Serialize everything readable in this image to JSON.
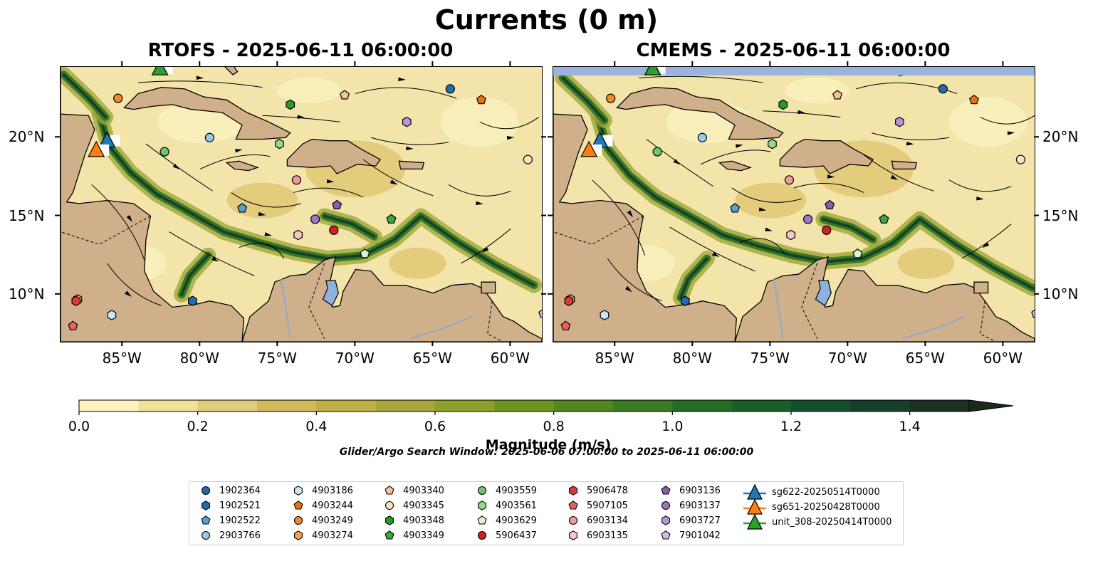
{
  "title": "Currents (0 m)",
  "panels": [
    {
      "title": "RTOFS - 2025-06-11 06:00:00"
    },
    {
      "title": "CMEMS - 2025-06-11 06:00:00"
    }
  ],
  "axes": {
    "lon_ticks": [
      "85°W",
      "80°W",
      "75°W",
      "70°W",
      "65°W",
      "60°W"
    ],
    "lat_ticks": [
      "20°N",
      "15°N",
      "10°N"
    ],
    "lon_range": [
      -89.0,
      -58.0
    ],
    "lat_range": [
      7.0,
      24.5
    ]
  },
  "colorbar": {
    "label": "Magnitude (m/s)",
    "ticks": [
      "0.0",
      "0.2",
      "0.4",
      "0.6",
      "0.8",
      "1.0",
      "1.2",
      "1.4"
    ],
    "range": [
      0.0,
      1.5
    ],
    "extend": "max",
    "colors": [
      "#fbf3c0",
      "#efe09a",
      "#e1cc7a",
      "#d1b95c",
      "#bfb045",
      "#a7a83c",
      "#8ea02a",
      "#6f941f",
      "#52861f",
      "#3a7a22",
      "#256c24",
      "#175e27",
      "#11502a",
      "#16402a",
      "#1b3422",
      "#1a2a1a"
    ]
  },
  "search_window": "Glider/Argo Search Window: 2025-06-06 07:00:00 to 2025-06-11 06:00:00",
  "legend": {
    "entries": [
      {
        "label": "1902364",
        "marker": "circle",
        "color": "#1f6db0"
      },
      {
        "label": "1902521",
        "marker": "hexagon",
        "color": "#1f6db0"
      },
      {
        "label": "1902522",
        "marker": "pentagon",
        "color": "#5a9fd4"
      },
      {
        "label": "2903766",
        "marker": "circle",
        "color": "#9cc8ea"
      },
      {
        "label": "4903186",
        "marker": "hexagon",
        "color": "#cfe6f7"
      },
      {
        "label": "4903244",
        "marker": "pentagon",
        "color": "#e8730c"
      },
      {
        "label": "4903249",
        "marker": "circle",
        "color": "#f08c2a"
      },
      {
        "label": "4903274",
        "marker": "hexagon",
        "color": "#f5a24a"
      },
      {
        "label": "4903340",
        "marker": "pentagon",
        "color": "#f7c08e"
      },
      {
        "label": "4903345",
        "marker": "circle",
        "color": "#fde0c4"
      },
      {
        "label": "4903348",
        "marker": "hexagon",
        "color": "#279a2c"
      },
      {
        "label": "4903349",
        "marker": "pentagon",
        "color": "#3aa83a"
      },
      {
        "label": "4903559",
        "marker": "circle",
        "color": "#6cc66a"
      },
      {
        "label": "4903561",
        "marker": "hexagon",
        "color": "#93da8b"
      },
      {
        "label": "4903629",
        "marker": "pentagon",
        "color": "#d8f4cf"
      },
      {
        "label": "5906437",
        "marker": "circle",
        "color": "#d42020"
      },
      {
        "label": "5906478",
        "marker": "hexagon",
        "color": "#df3a3a"
      },
      {
        "label": "5907105",
        "marker": "pentagon",
        "color": "#e86060"
      },
      {
        "label": "6903134",
        "marker": "circle",
        "color": "#f09a9a"
      },
      {
        "label": "6903135",
        "marker": "hexagon",
        "color": "#f8c6c6"
      },
      {
        "label": "6903136",
        "marker": "pentagon",
        "color": "#8a5cb0"
      },
      {
        "label": "6903137",
        "marker": "circle",
        "color": "#9e74c4"
      },
      {
        "label": "6903727",
        "marker": "hexagon",
        "color": "#b896d8"
      },
      {
        "label": "7901042",
        "marker": "pentagon",
        "color": "#d2bdea"
      },
      {
        "label": "sg622-20250514T0000",
        "marker": "triangle",
        "color": "#1f77b4"
      },
      {
        "label": "sg651-20250428T0000",
        "marker": "triangle",
        "color": "#ff7f0e"
      },
      {
        "label": "unit_308-20250414T0000",
        "marker": "triangle",
        "color": "#2ca02c"
      }
    ]
  },
  "floats": [
    {
      "label": "1902364",
      "rtofs": [
        -63.9,
        23.1
      ],
      "cmems": [
        -63.9,
        23.1
      ]
    },
    {
      "label": "1902521",
      "rtofs": [
        -80.5,
        9.6
      ],
      "cmems": [
        -80.5,
        9.6
      ]
    },
    {
      "label": "1902522",
      "rtofs": [
        -77.3,
        15.5
      ],
      "cmems": [
        -77.3,
        15.5
      ]
    },
    {
      "label": "2903766",
      "rtofs": [
        -79.4,
        20.0
      ],
      "cmems": [
        -79.4,
        20.0
      ]
    },
    {
      "label": "4903186",
      "rtofs": [
        -85.7,
        8.7
      ],
      "cmems": [
        -85.7,
        8.7
      ]
    },
    {
      "label": "4903244",
      "rtofs": [
        -61.9,
        22.4
      ],
      "cmems": [
        -61.9,
        22.4
      ]
    },
    {
      "label": "4903249",
      "rtofs": [
        -85.3,
        22.5
      ],
      "cmems": [
        -85.3,
        22.5
      ]
    },
    {
      "label": "4903274",
      "rtofs": [
        -87.9,
        9.7
      ],
      "cmems": [
        -87.9,
        9.7
      ]
    },
    {
      "label": "4903340",
      "rtofs": [
        -70.7,
        22.7
      ],
      "cmems": [
        -70.7,
        22.7
      ]
    },
    {
      "label": "4903345",
      "rtofs": [
        -58.9,
        18.6
      ],
      "cmems": [
        -58.9,
        18.6
      ]
    },
    {
      "label": "4903348",
      "rtofs": [
        -74.2,
        22.1
      ],
      "cmems": [
        -74.2,
        22.1
      ]
    },
    {
      "label": "4903349",
      "rtofs": [
        -67.7,
        14.8
      ],
      "cmems": [
        -67.7,
        14.8
      ]
    },
    {
      "label": "4903559",
      "rtofs": [
        -82.3,
        19.1
      ],
      "cmems": [
        -82.3,
        19.1
      ]
    },
    {
      "label": "4903561",
      "rtofs": [
        -74.9,
        19.6
      ],
      "cmems": [
        -74.9,
        19.6
      ]
    },
    {
      "label": "4903629",
      "rtofs": [
        -69.4,
        12.6
      ],
      "cmems": [
        -69.4,
        12.6
      ]
    },
    {
      "label": "5906437",
      "rtofs": [
        -71.4,
        14.1
      ],
      "cmems": [
        -71.4,
        14.1
      ]
    },
    {
      "label": "5906478",
      "rtofs": [
        -88.0,
        9.6
      ],
      "cmems": [
        -88.0,
        9.6
      ]
    },
    {
      "label": "5907105",
      "rtofs": [
        -88.2,
        8.0
      ],
      "cmems": [
        -88.2,
        8.0
      ]
    },
    {
      "label": "6903134",
      "rtofs": [
        -73.8,
        17.3
      ],
      "cmems": [
        -73.8,
        17.3
      ]
    },
    {
      "label": "6903135",
      "rtofs": [
        -73.7,
        13.8
      ],
      "cmems": [
        -73.7,
        13.8
      ]
    },
    {
      "label": "6903136",
      "rtofs": [
        -71.2,
        15.7
      ],
      "cmems": [
        -71.2,
        15.7
      ]
    },
    {
      "label": "6903137",
      "rtofs": [
        -72.6,
        14.8
      ],
      "cmems": [
        -72.6,
        14.8
      ]
    },
    {
      "label": "6903727",
      "rtofs": [
        -66.7,
        21.0
      ],
      "cmems": [
        -66.7,
        21.0
      ]
    },
    {
      "label": "7901042",
      "rtofs": [
        -57.9,
        8.8
      ],
      "cmems": [
        -57.9,
        8.8
      ]
    }
  ],
  "gliders": [
    {
      "label": "sg622-20250514T0000",
      "lon": -86.0,
      "lat": 19.8
    },
    {
      "label": "sg651-20250428T0000",
      "lon": -86.7,
      "lat": 19.2
    },
    {
      "label": "unit_308-20250414T0000",
      "lon": -82.6,
      "lat": 24.4
    }
  ]
}
